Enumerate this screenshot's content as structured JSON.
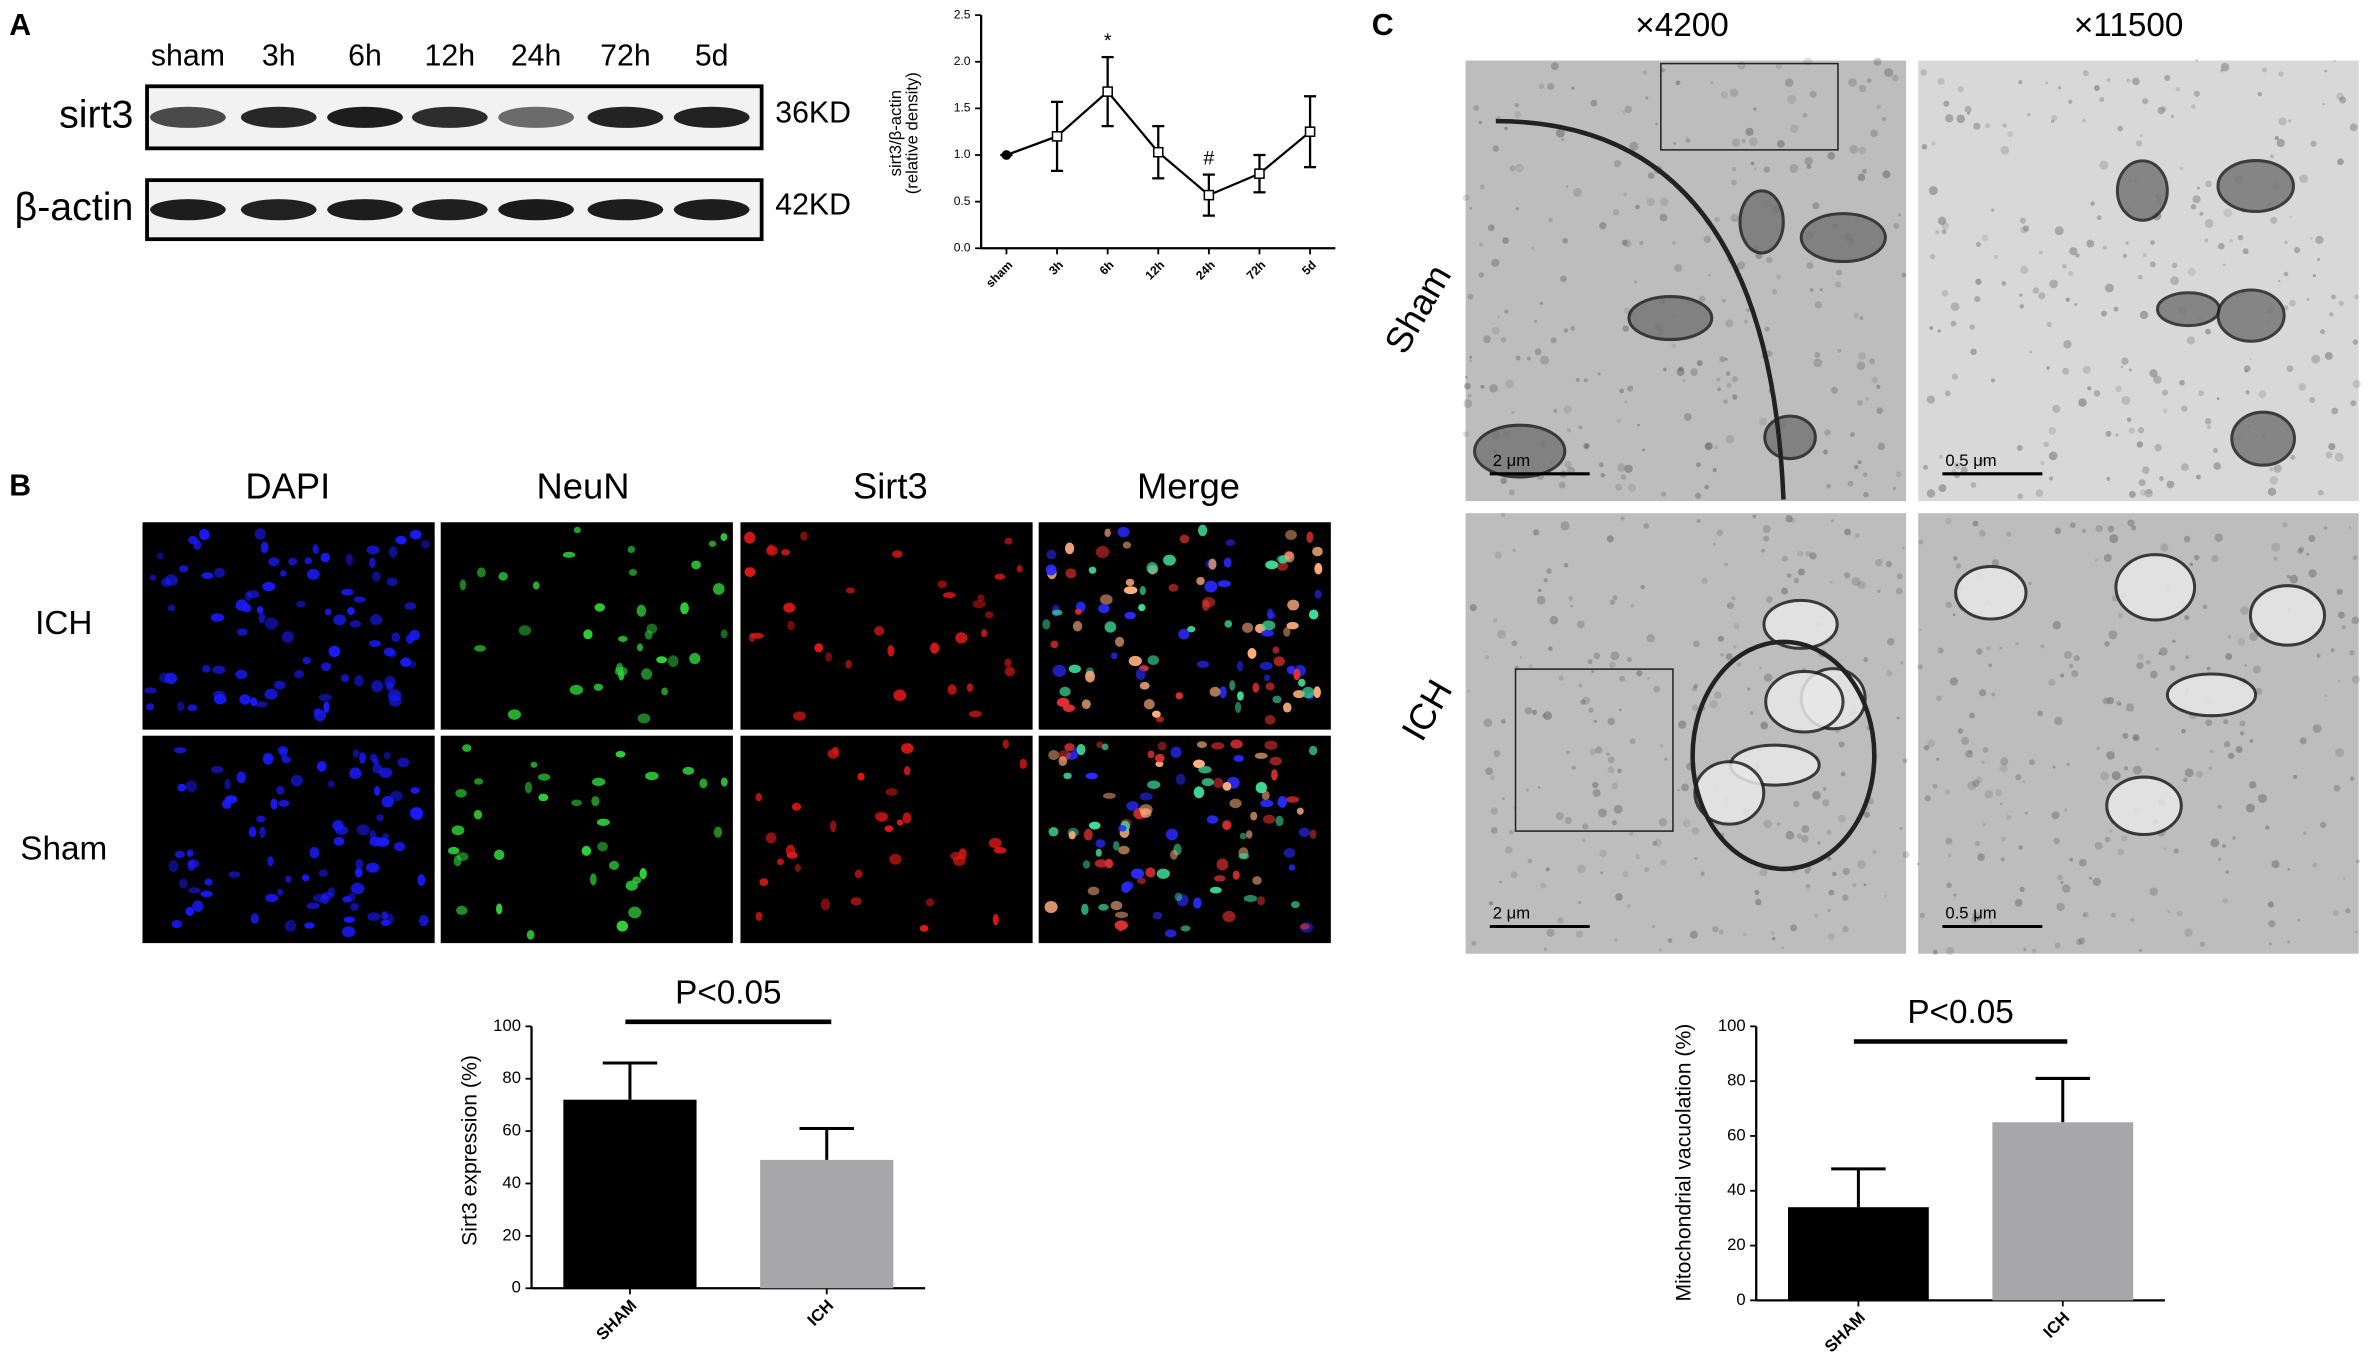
{
  "panels": {
    "a": {
      "letter": "A",
      "lanes": [
        "sham",
        "3h",
        "6h",
        "12h",
        "24h",
        "72h",
        "5d"
      ],
      "rows": [
        {
          "name": "sirt3",
          "size": "36KD"
        },
        {
          "name": "β-actin",
          "size": "42KD"
        }
      ]
    },
    "b": {
      "letter": "B",
      "columns": [
        "DAPI",
        "NeuN",
        "Sirt3",
        "Merge"
      ],
      "rows": [
        "ICH",
        "Sham"
      ]
    },
    "c": {
      "letter": "C",
      "columns": [
        "×4200",
        "×11500"
      ],
      "rows": [
        "Sham",
        "ICH"
      ],
      "scale_bars": [
        "2 μm",
        "0.5 μm"
      ]
    }
  },
  "chart_data": [
    {
      "type": "line",
      "ylabel": [
        "sirt3/β-actin",
        "(relative density)"
      ],
      "categories": [
        "sham",
        "3h",
        "6h",
        "12h",
        "24h",
        "72h",
        "5d"
      ],
      "values": [
        1.0,
        1.2,
        1.68,
        1.03,
        0.57,
        0.8,
        1.25
      ],
      "errors": [
        0,
        0.37,
        0.37,
        0.28,
        0.22,
        0.2,
        0.38
      ],
      "point_labels": [
        null,
        null,
        "*",
        null,
        "#",
        null,
        null
      ],
      "color": "#000000",
      "ylim": [
        0,
        2.5
      ],
      "yticks": [
        {
          "value": 0,
          "label": "0.0"
        },
        0.5,
        {
          "value": 1,
          "label": "1.0"
        },
        1.5,
        {
          "value": 2,
          "label": "2.0"
        },
        2.5
      ]
    },
    {
      "type": "bar",
      "ylabel": "Sirt3 expression (%)",
      "categories": [
        "SHAM",
        "ICH"
      ],
      "values": [
        72,
        49
      ],
      "errors": [
        14,
        12
      ],
      "colors": [
        "#000000",
        "#a7a7a9"
      ],
      "annotation": "P<0.05",
      "ylim": [
        0,
        100
      ],
      "yticks": [
        0,
        20,
        40,
        60,
        80,
        100
      ]
    },
    {
      "type": "bar",
      "ylabel": "Mitochondrial vacuolation (%)",
      "categories": [
        "SHAM",
        "ICH"
      ],
      "values": [
        34,
        65
      ],
      "errors": [
        14,
        16
      ],
      "colors": [
        "#000000",
        "#a7a7a9"
      ],
      "annotation": "P<0.05",
      "ylim": [
        0,
        100
      ],
      "yticks": [
        0,
        20,
        40,
        60,
        80,
        100
      ]
    }
  ]
}
